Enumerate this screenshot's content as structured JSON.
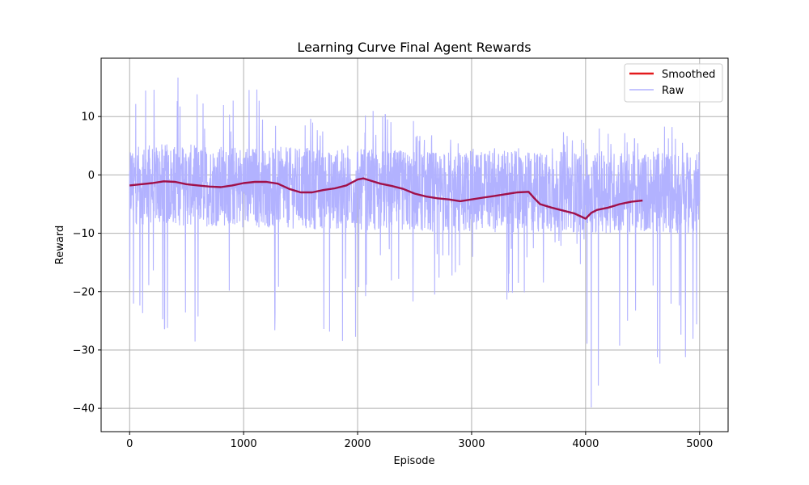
{
  "chart_data": {
    "type": "line",
    "title": "Learning Curve Final Agent Rewards",
    "xlabel": "Episode",
    "ylabel": "Reward",
    "xlim": [
      -250,
      5250
    ],
    "ylim": [
      -44,
      20
    ],
    "xticks": [
      0,
      1000,
      2000,
      3000,
      4000,
      5000
    ],
    "yticks": [
      -40,
      -30,
      -20,
      -10,
      0,
      10
    ],
    "grid": true,
    "legend_position": "top-right",
    "colors": {
      "smoothed": "#e31a1c",
      "raw": "#b2b2ff",
      "overlap": "#a0104a"
    },
    "series": [
      {
        "name": "Smoothed",
        "style": "smoothed",
        "x": [
          0,
          100,
          200,
          300,
          400,
          500,
          600,
          700,
          800,
          900,
          1000,
          1100,
          1200,
          1300,
          1400,
          1500,
          1600,
          1700,
          1800,
          1900,
          2000,
          2050,
          2100,
          2200,
          2300,
          2400,
          2500,
          2600,
          2700,
          2800,
          2900,
          3000,
          3100,
          3200,
          3300,
          3400,
          3500,
          3550,
          3600,
          3700,
          3800,
          3900,
          4000,
          4050,
          4100,
          4200,
          4300,
          4400,
          4500
        ],
        "y": [
          -1.8,
          -1.6,
          -1.4,
          -1.1,
          -1.2,
          -1.6,
          -1.8,
          -2.0,
          -2.1,
          -1.8,
          -1.4,
          -1.2,
          -1.2,
          -1.5,
          -2.4,
          -3.0,
          -3.0,
          -2.6,
          -2.3,
          -1.8,
          -0.8,
          -0.6,
          -0.9,
          -1.5,
          -1.9,
          -2.4,
          -3.2,
          -3.7,
          -4.0,
          -4.2,
          -4.5,
          -4.2,
          -3.9,
          -3.6,
          -3.3,
          -3.0,
          -2.9,
          -4.0,
          -5.0,
          -5.6,
          -6.1,
          -6.6,
          -7.5,
          -6.5,
          -6.0,
          -5.6,
          -5.0,
          -4.6,
          -4.4
        ]
      },
      {
        "name": "Raw",
        "style": "raw",
        "x": [
          0,
          2500,
          5000
        ],
        "y": [
          -1.5,
          -2.8,
          -3.0
        ],
        "noise": {
          "segments": [
            {
              "x0": 0,
              "x1": 20,
              "min": -21,
              "max": 4
            },
            {
              "x0": 20,
              "x1": 600,
              "min": -29,
              "max": 17
            },
            {
              "x0": 600,
              "x1": 1000,
              "min": -22,
              "max": 13
            },
            {
              "x0": 1000,
              "x1": 1500,
              "min": -27,
              "max": 15
            },
            {
              "x0": 1500,
              "x1": 2000,
              "min": -30,
              "max": 10
            },
            {
              "x0": 2000,
              "x1": 2500,
              "min": -23,
              "max": 12
            },
            {
              "x0": 2500,
              "x1": 3000,
              "min": -22,
              "max": 7
            },
            {
              "x0": 3000,
              "x1": 3600,
              "min": -22,
              "max": 5
            },
            {
              "x0": 3600,
              "x1": 4000,
              "min": -19,
              "max": 8
            },
            {
              "x0": 4000,
              "x1": 4200,
              "min": -41,
              "max": 8
            },
            {
              "x0": 4200,
              "x1": 4600,
              "min": -31,
              "max": 9
            },
            {
              "x0": 4600,
              "x1": 5000,
              "min": -33,
              "max": 9
            }
          ]
        }
      }
    ]
  }
}
